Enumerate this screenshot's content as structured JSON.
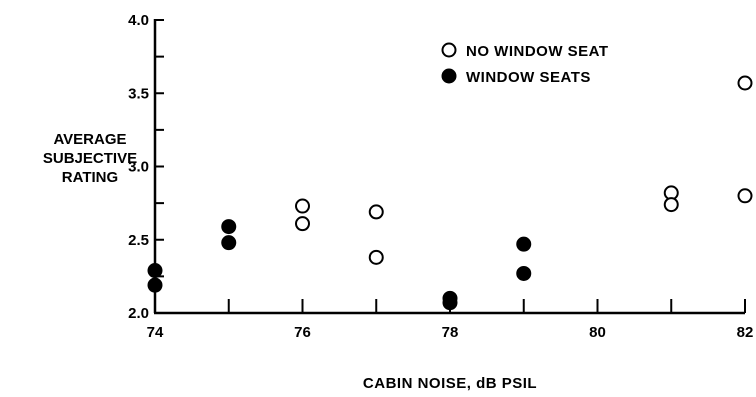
{
  "chart_data": {
    "type": "scatter",
    "xlabel": "CABIN NOISE, dB PSIL",
    "ylabel": [
      "AVERAGE",
      "SUBJECTIVE",
      "RATING"
    ],
    "xlim": [
      74,
      82
    ],
    "ylim": [
      2.0,
      4.0
    ],
    "x_ticks": [
      "74",
      "76",
      "78",
      "80",
      "82"
    ],
    "y_ticks": [
      "2.0",
      "2.5",
      "3.0",
      "3.5",
      "4.0"
    ],
    "legend_position": "top-right",
    "grid": false,
    "series": [
      {
        "name": "NO WINDOW SEAT",
        "marker": "open-circle",
        "points": [
          {
            "x": 76,
            "y": 2.73
          },
          {
            "x": 76,
            "y": 2.61
          },
          {
            "x": 77,
            "y": 2.69
          },
          {
            "x": 77,
            "y": 2.38
          },
          {
            "x": 81,
            "y": 2.82
          },
          {
            "x": 81,
            "y": 2.74
          },
          {
            "x": 82,
            "y": 3.57
          },
          {
            "x": 82,
            "y": 2.8
          }
        ]
      },
      {
        "name": "WINDOW SEATS",
        "marker": "filled-circle",
        "points": [
          {
            "x": 74,
            "y": 2.29
          },
          {
            "x": 74,
            "y": 2.19
          },
          {
            "x": 75,
            "y": 2.59
          },
          {
            "x": 75,
            "y": 2.48
          },
          {
            "x": 78,
            "y": 2.1
          },
          {
            "x": 78,
            "y": 2.07
          },
          {
            "x": 79,
            "y": 2.47
          },
          {
            "x": 79,
            "y": 2.27
          }
        ]
      }
    ],
    "colors": {
      "ink": "#000000",
      "background": "#ffffff"
    }
  }
}
